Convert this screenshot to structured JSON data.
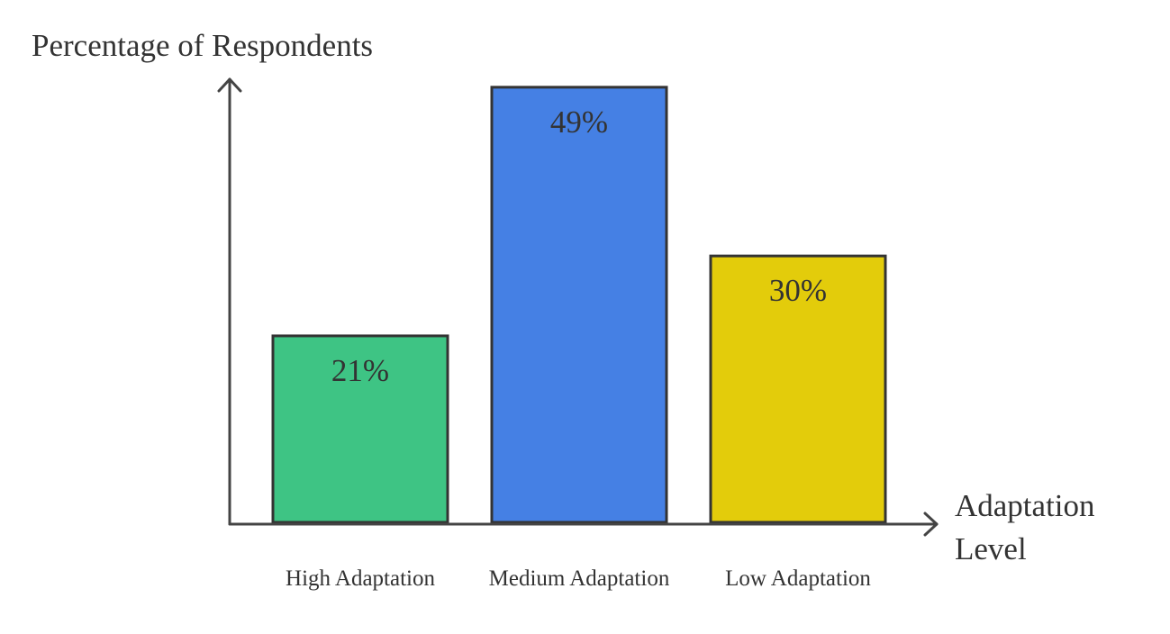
{
  "chart_data": {
    "type": "bar",
    "y_axis_label": "Percentage of Respondents",
    "x_axis_label": "Adaptation Level",
    "categories": [
      "High Adaptation",
      "Medium Adaptation",
      "Low Adaptation"
    ],
    "values": [
      21,
      49,
      30
    ],
    "value_labels": [
      "21%",
      "49%",
      "30%"
    ],
    "colors": [
      "#3ec484",
      "#4580e4",
      "#e3cc0b"
    ],
    "ylim": [
      0,
      50
    ]
  }
}
